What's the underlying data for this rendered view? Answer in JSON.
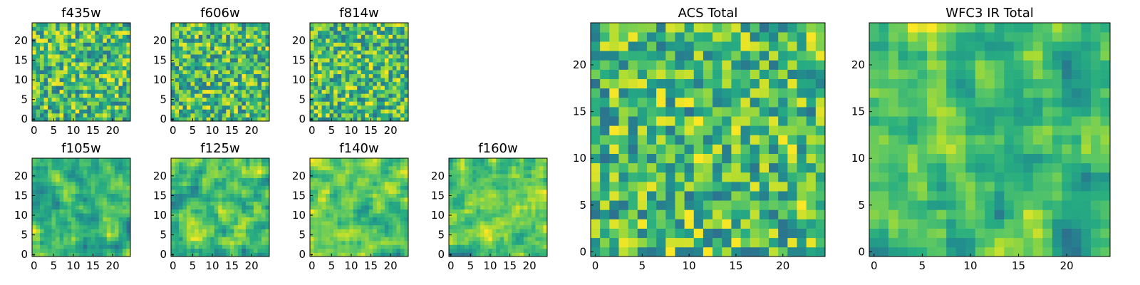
{
  "chart_data": [
    {
      "type": "heatmap",
      "title": "f435w",
      "xticks": [
        "0",
        "5",
        "10",
        "15",
        "20"
      ],
      "yticks": [
        "0",
        "5",
        "10",
        "15",
        "20"
      ],
      "xlim": [
        0,
        25
      ],
      "ylim": [
        0,
        25
      ],
      "colormap": "viridis"
    },
    {
      "type": "heatmap",
      "title": "f606w",
      "xticks": [
        "0",
        "5",
        "10",
        "15",
        "20"
      ],
      "yticks": [
        "0",
        "5",
        "10",
        "15",
        "20"
      ],
      "xlim": [
        0,
        25
      ],
      "ylim": [
        0,
        25
      ],
      "colormap": "viridis"
    },
    {
      "type": "heatmap",
      "title": "f814w",
      "xticks": [
        "0",
        "5",
        "10",
        "15",
        "20"
      ],
      "yticks": [
        "0",
        "5",
        "10",
        "15",
        "20"
      ],
      "xlim": [
        0,
        25
      ],
      "ylim": [
        0,
        25
      ],
      "colormap": "viridis"
    },
    {
      "type": "heatmap",
      "title": "f105w",
      "xticks": [
        "0",
        "5",
        "10",
        "15",
        "20"
      ],
      "yticks": [
        "0",
        "5",
        "10",
        "15",
        "20"
      ],
      "xlim": [
        0,
        25
      ],
      "ylim": [
        0,
        25
      ],
      "colormap": "viridis"
    },
    {
      "type": "heatmap",
      "title": "f125w",
      "xticks": [
        "0",
        "5",
        "10",
        "15",
        "20"
      ],
      "yticks": [
        "0",
        "5",
        "10",
        "15",
        "20"
      ],
      "xlim": [
        0,
        25
      ],
      "ylim": [
        0,
        25
      ],
      "colormap": "viridis"
    },
    {
      "type": "heatmap",
      "title": "f140w",
      "xticks": [
        "0",
        "5",
        "10",
        "15",
        "20"
      ],
      "yticks": [
        "0",
        "5",
        "10",
        "15",
        "20"
      ],
      "xlim": [
        0,
        25
      ],
      "ylim": [
        0,
        25
      ],
      "colormap": "viridis"
    },
    {
      "type": "heatmap",
      "title": "f160w",
      "xticks": [
        "0",
        "5",
        "10",
        "15",
        "20"
      ],
      "yticks": [
        "0",
        "5",
        "10",
        "15",
        "20"
      ],
      "xlim": [
        0,
        25
      ],
      "ylim": [
        0,
        25
      ],
      "colormap": "viridis"
    },
    {
      "type": "heatmap",
      "title": "ACS Total",
      "xticks": [
        "0",
        "5",
        "10",
        "15",
        "20"
      ],
      "yticks": [
        "0",
        "5",
        "10",
        "15",
        "20"
      ],
      "xlim": [
        0,
        25
      ],
      "ylim": [
        0,
        25
      ],
      "colormap": "viridis"
    },
    {
      "type": "heatmap",
      "title": "WFC3 IR Total",
      "xticks": [
        "0",
        "5",
        "10",
        "15",
        "20"
      ],
      "yticks": [
        "0",
        "5",
        "10",
        "15",
        "20"
      ],
      "xlim": [
        0,
        25
      ],
      "ylim": [
        0,
        25
      ],
      "colormap": "viridis"
    }
  ]
}
